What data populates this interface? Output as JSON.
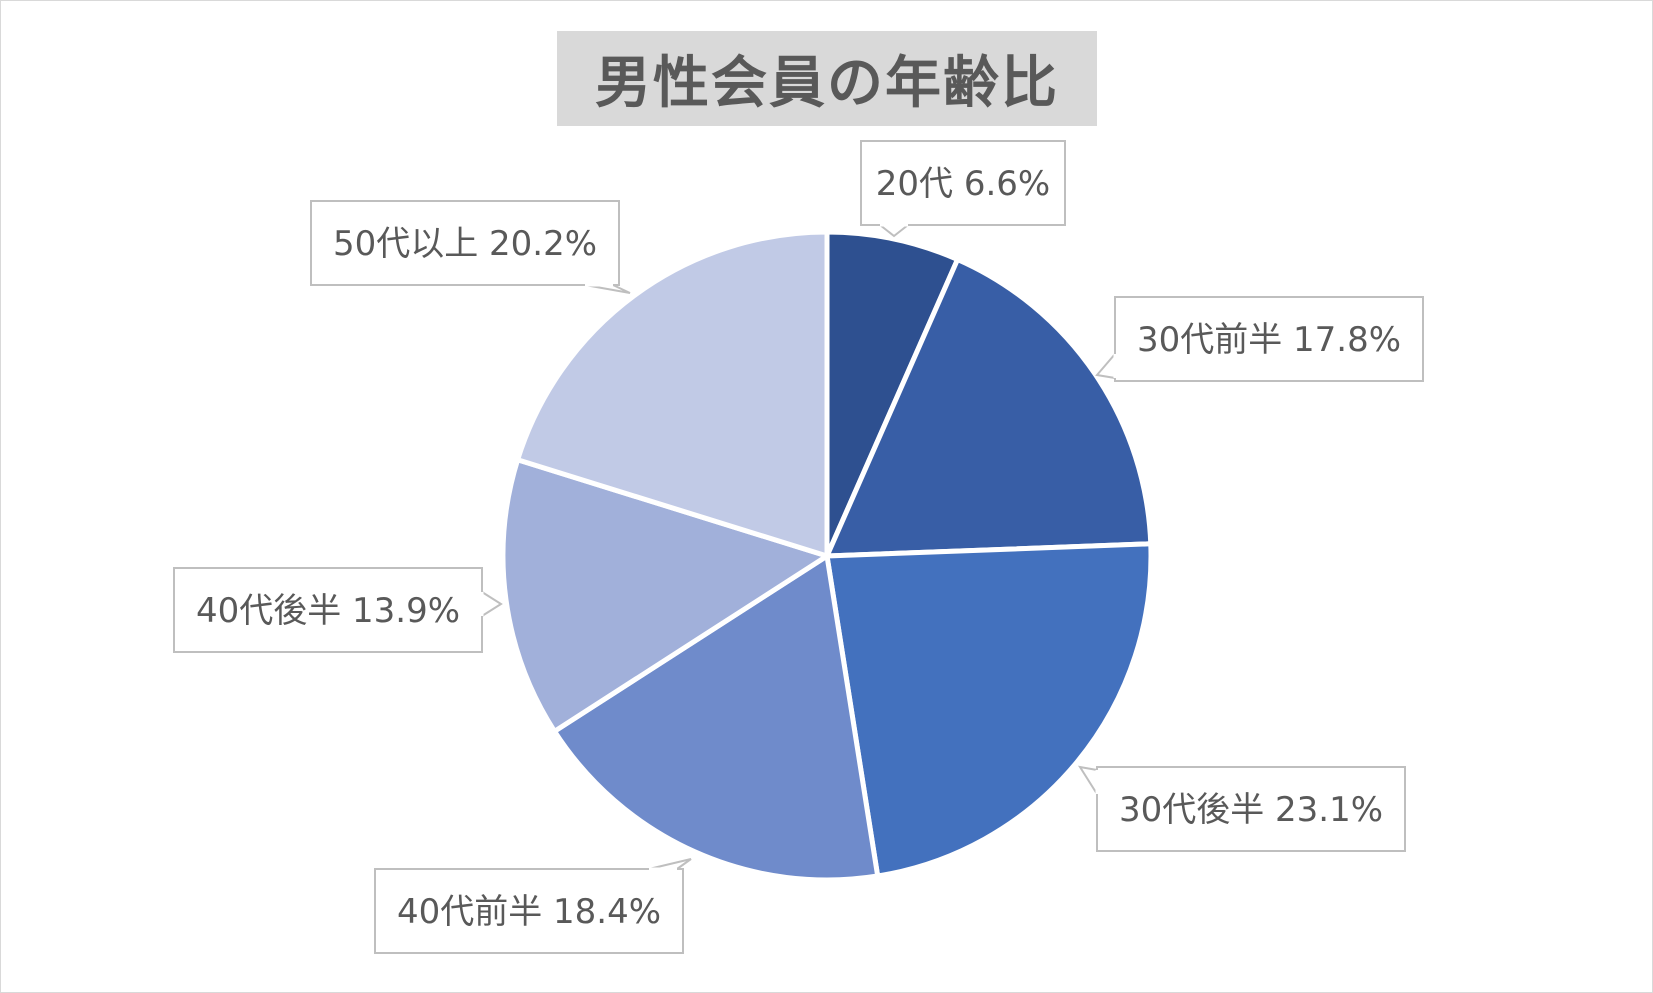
{
  "chart_data": {
    "type": "pie",
    "title": "男性会員の年齢比",
    "slices": [
      {
        "label": "20代",
        "value": 6.6,
        "display": "20代 6.6%",
        "color": "#2e5090"
      },
      {
        "label": "30代前半",
        "value": 17.8,
        "display": "30代前半 17.8%",
        "color": "#385ea6"
      },
      {
        "label": "30代後半",
        "value": 23.1,
        "display": "30代後半 23.1%",
        "color": "#4371be"
      },
      {
        "label": "40代前半",
        "value": 18.4,
        "display": "40代前半 18.4%",
        "color": "#6f8bcb"
      },
      {
        "label": "40代後半",
        "value": 13.9,
        "display": "40代後半 13.9%",
        "color": "#a1b0da"
      },
      {
        "label": "50代以上",
        "value": 20.2,
        "display": "50代以上 20.2%",
        "color": "#c1cae6"
      }
    ],
    "legend": "none",
    "data_labels": "callout"
  }
}
